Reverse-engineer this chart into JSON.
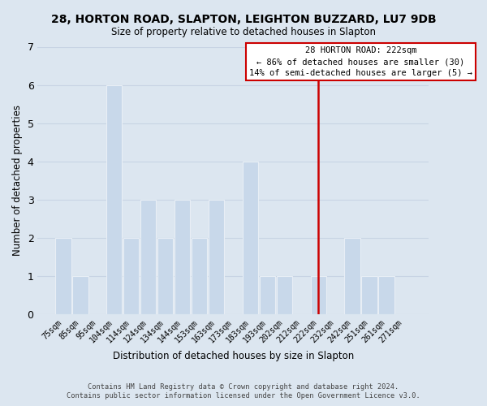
{
  "title": "28, HORTON ROAD, SLAPTON, LEIGHTON BUZZARD, LU7 9DB",
  "subtitle": "Size of property relative to detached houses in Slapton",
  "xlabel": "Distribution of detached houses by size in Slapton",
  "ylabel": "Number of detached properties",
  "categories": [
    "75sqm",
    "85sqm",
    "95sqm",
    "104sqm",
    "114sqm",
    "124sqm",
    "134sqm",
    "144sqm",
    "153sqm",
    "163sqm",
    "173sqm",
    "183sqm",
    "193sqm",
    "202sqm",
    "212sqm",
    "222sqm",
    "232sqm",
    "242sqm",
    "251sqm",
    "261sqm",
    "271sqm"
  ],
  "values": [
    2,
    1,
    0,
    6,
    2,
    3,
    2,
    3,
    2,
    3,
    0,
    4,
    1,
    1,
    0,
    1,
    0,
    2,
    1,
    1,
    0
  ],
  "bar_color": "#c8d8ea",
  "bar_edgecolor": "#e8eef5",
  "vline_x_index": 15,
  "vline_color": "#cc0000",
  "annotation_line1": "28 HORTON ROAD: 222sqm",
  "annotation_line2": "← 86% of detached houses are smaller (30)",
  "annotation_line3": "14% of semi-detached houses are larger (5) →",
  "annotation_boxcolor": "#ffffff",
  "annotation_edgecolor": "#cc0000",
  "ylim": [
    0,
    7
  ],
  "yticks": [
    0,
    1,
    2,
    3,
    4,
    5,
    6,
    7
  ],
  "grid_color": "#c8d4e4",
  "background_color": "#dce6f0",
  "footer_line1": "Contains HM Land Registry data © Crown copyright and database right 2024.",
  "footer_line2": "Contains public sector information licensed under the Open Government Licence v3.0."
}
